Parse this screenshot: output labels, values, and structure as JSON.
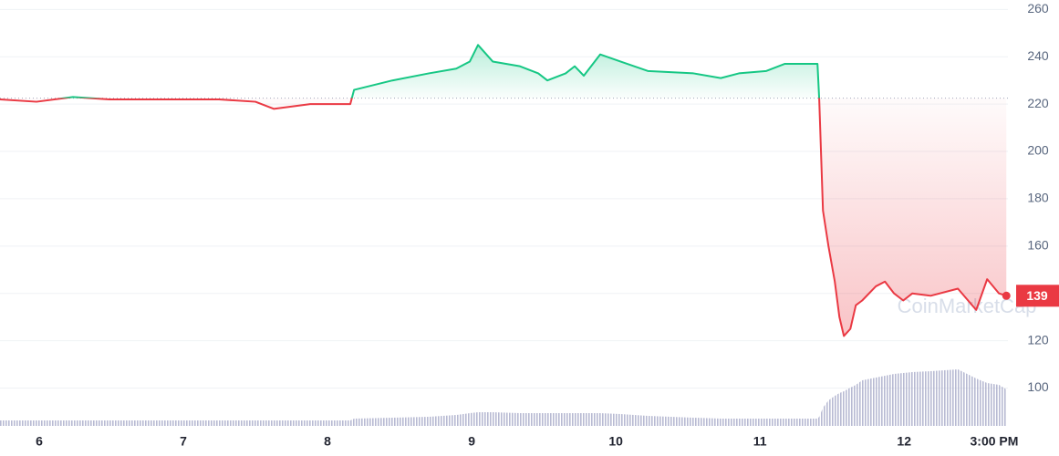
{
  "chart_data": {
    "type": "line",
    "watermark": "CoinMarketCap",
    "x": [
      5.728,
      5.981,
      6.234,
      6.487,
      6.741,
      6.994,
      7.247,
      7.5,
      7.627,
      7.88,
      8.158,
      8.184,
      8.45,
      8.703,
      8.893,
      8.987,
      9.044,
      9.146,
      9.335,
      9.462,
      9.525,
      9.652,
      9.715,
      9.778,
      9.892,
      10.032,
      10.222,
      10.538,
      10.728,
      10.854,
      11.044,
      11.171,
      11.399,
      11.411,
      11.437,
      11.475,
      11.519,
      11.551,
      11.582,
      11.627,
      11.665,
      11.709,
      11.804,
      11.867,
      11.93,
      11.994,
      12.057,
      12.184,
      12.373,
      12.5,
      12.576,
      12.658,
      12.709
    ],
    "values": [
      222,
      221,
      223,
      222,
      222,
      222,
      222,
      221,
      218,
      220,
      220,
      226,
      230,
      233,
      235,
      238,
      245,
      238,
      236,
      233,
      230,
      233,
      236,
      232,
      241,
      238,
      234,
      233,
      231,
      233,
      234,
      237,
      237,
      222,
      175,
      160,
      145,
      130,
      122,
      125,
      135,
      137,
      143,
      145,
      140,
      137,
      140,
      139,
      142,
      133,
      146,
      140,
      139
    ],
    "volume": [
      6,
      6,
      6,
      6,
      6,
      6,
      6,
      6,
      6,
      6,
      6,
      8,
      9,
      10,
      12,
      14,
      15,
      15,
      14,
      14,
      14,
      14,
      14,
      14,
      14,
      13,
      11,
      9,
      8,
      8,
      8,
      8,
      8,
      10,
      20,
      28,
      33,
      36,
      38,
      42,
      45,
      50,
      53,
      55,
      57,
      58,
      59,
      60,
      62,
      52,
      47,
      45,
      40
    ],
    "baseline": 222.5,
    "up_color": "#16c784",
    "down_color": "#ea3943",
    "volume_color": "#a6a9c8",
    "xlim": [
      5.728,
      12.72
    ],
    "xticks": [
      6,
      7,
      8,
      9,
      10,
      11,
      12,
      {
        "value": 12.625,
        "label": "3:00 PM"
      }
    ],
    "ylim": [
      84,
      264
    ],
    "yticks": [
      100,
      120,
      140,
      160,
      180,
      200,
      220,
      240,
      260
    ],
    "grid": true
  }
}
